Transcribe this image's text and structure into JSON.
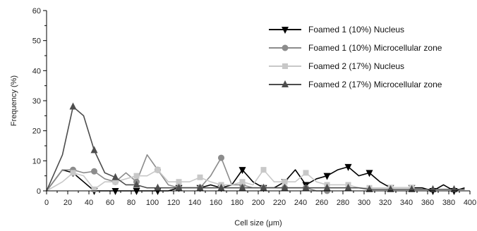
{
  "chart_data": {
    "type": "line",
    "xlabel": "Cell size (μm)",
    "ylabel": "Frequency (%)",
    "xlim": [
      0,
      400
    ],
    "ylim": [
      0,
      60
    ],
    "xticks": [
      0,
      20,
      40,
      60,
      80,
      100,
      120,
      140,
      160,
      180,
      200,
      220,
      240,
      260,
      280,
      300,
      320,
      340,
      360,
      380,
      400
    ],
    "yticks": [
      0,
      10,
      20,
      30,
      40,
      50,
      60
    ],
    "grid": false,
    "legend_position": "top-right",
    "series": [
      {
        "name": "Foamed 1 (10%) Nucleus",
        "color": "#000000",
        "marker": "triangle-down",
        "x": [
          0,
          15,
          25,
          35,
          45,
          55,
          65,
          75,
          85,
          95,
          105,
          115,
          125,
          135,
          145,
          155,
          165,
          175,
          185,
          195,
          205,
          215,
          225,
          235,
          245,
          255,
          265,
          275,
          285,
          295,
          305,
          315,
          325,
          335,
          345,
          355,
          365,
          375,
          385,
          395
        ],
        "values": [
          0,
          7,
          6,
          3,
          0,
          0,
          0,
          0,
          0,
          0,
          0,
          0,
          1,
          1,
          1,
          2,
          1,
          2,
          7,
          3,
          1,
          1,
          3,
          7,
          2,
          4,
          5,
          7,
          8,
          5,
          6,
          3,
          1,
          1,
          1,
          1,
          0,
          2,
          0,
          1
        ]
      },
      {
        "name": "Foamed 1 (10%) Microcellular zone",
        "color": "#8c8c8c",
        "marker": "circle",
        "x": [
          0,
          15,
          25,
          35,
          45,
          55,
          65,
          75,
          85,
          95,
          105,
          115,
          125,
          135,
          145,
          155,
          165,
          175,
          185,
          195,
          205,
          215,
          225,
          235,
          245,
          255,
          265
        ],
        "values": [
          0,
          7,
          7,
          6,
          6.5,
          4,
          3,
          6,
          3,
          12,
          7,
          2,
          1,
          1,
          1,
          5,
          11,
          2,
          2,
          1,
          1,
          1,
          1,
          1,
          1,
          0,
          0
        ]
      },
      {
        "name": "Foamed 2 (17%) Nucleus",
        "color": "#c8c8c8",
        "marker": "square",
        "x": [
          0,
          15,
          25,
          35,
          45,
          55,
          65,
          75,
          85,
          95,
          105,
          115,
          125,
          135,
          145,
          155,
          165,
          175,
          185,
          195,
          205,
          215,
          225,
          235,
          245,
          255,
          265,
          275,
          285,
          295,
          305,
          315,
          325,
          335,
          345
        ],
        "values": [
          0,
          3,
          6,
          5,
          0.5,
          3,
          3,
          4,
          5,
          5,
          7,
          3,
          3,
          3,
          4.5,
          3,
          2,
          2,
          3,
          2,
          7,
          3,
          3,
          3,
          6,
          3,
          2,
          2,
          2,
          1,
          1,
          1,
          1,
          1,
          1
        ]
      },
      {
        "name": "Foamed 2 (17%) Microcellular zone",
        "color": "#4d4d4d",
        "marker": "triangle-up",
        "x": [
          0,
          15,
          25,
          35,
          45,
          55,
          65,
          75,
          85,
          95,
          105,
          115,
          125,
          135,
          145,
          155,
          165,
          175,
          185,
          195,
          205,
          215,
          225,
          235,
          245,
          255,
          265,
          275,
          285,
          295,
          305,
          315,
          325,
          335,
          345,
          355,
          365,
          375,
          385,
          395
        ],
        "values": [
          0,
          12,
          28,
          25,
          13.5,
          6,
          4.5,
          2,
          2,
          1,
          1,
          1,
          1,
          1,
          1,
          1,
          1,
          1,
          1,
          1,
          1,
          1,
          1,
          1,
          1,
          1,
          1,
          1,
          1,
          1,
          0.5,
          0.5,
          0.5,
          0.5,
          0.5,
          0.5,
          0.5,
          0.5,
          0.5,
          0.5
        ]
      }
    ]
  }
}
